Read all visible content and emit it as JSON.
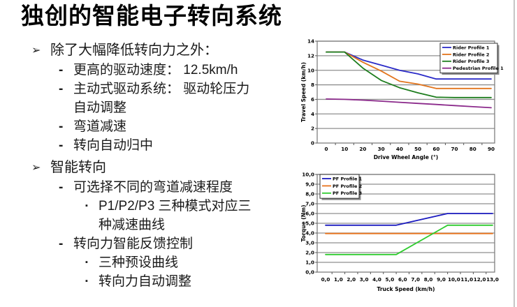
{
  "slide": {
    "title": "独创的智能电子转向系统"
  },
  "markers": {
    "l1": "➢",
    "l2": "-",
    "l3": "▪"
  },
  "outline": [
    {
      "text": "除了大幅降低转向力之外：",
      "children": [
        {
          "text": "更高的驱动速度： 12.5km/h"
        },
        {
          "lines": [
            "主动式驱动系统： 驱动轮压力",
            "自动调整"
          ]
        },
        {
          "text": "弯道减速"
        },
        {
          "text": "转向自动归中"
        }
      ]
    },
    {
      "text": "智能转向",
      "children": [
        {
          "text": "可选择不同的弯道减速程度",
          "children": [
            {
              "lines": [
                "P1/P2/P3 三种模式对应三",
                "种减速曲线"
              ]
            }
          ]
        },
        {
          "text": "转向力智能反馈控制",
          "children": [
            {
              "text": "三种预设曲线"
            },
            {
              "text": "转向力自动调整"
            }
          ]
        }
      ]
    }
  ],
  "chart_data": [
    {
      "type": "line",
      "title": "",
      "xlabel": "Drive Wheel Angle (°)",
      "ylabel": "Travel Speed (km/h)",
      "xlim": [
        0,
        90
      ],
      "ylim": [
        0,
        14
      ],
      "grid": "horizontal",
      "legend_position": "top-right",
      "x": [
        0,
        10,
        20,
        30,
        40,
        50,
        60,
        70,
        80,
        90
      ],
      "xtick_values": [
        0,
        10,
        20,
        30,
        40,
        50,
        60,
        70,
        80,
        90
      ],
      "xtick_labels": [
        "0",
        "10",
        "20",
        "30",
        "40",
        "50",
        "60",
        "70",
        "80",
        "90"
      ],
      "ytick_values": [
        0,
        2,
        4,
        6,
        8,
        10,
        12,
        14
      ],
      "ytick_labels": [
        "0",
        "2",
        "4",
        "6",
        "8",
        "10",
        "12",
        "14"
      ],
      "series": [
        {
          "name": "Rider Profile 1",
          "color": "#2b2bc8",
          "y": [
            12.5,
            12.5,
            11.4,
            10.7,
            10.0,
            9.5,
            8.8,
            8.8,
            8.8,
            8.8
          ]
        },
        {
          "name": "Rider Profile 2",
          "color": "#e2751d",
          "y": [
            12.5,
            12.5,
            11.1,
            9.9,
            8.5,
            8.1,
            7.5,
            7.5,
            7.5,
            7.5
          ]
        },
        {
          "name": "Rider Profile 3",
          "color": "#1e7d1e",
          "y": [
            12.5,
            12.5,
            10.3,
            8.6,
            7.6,
            6.9,
            6.3,
            6.25,
            6.25,
            6.25
          ]
        },
        {
          "name": "Pedestrian Profile 1",
          "color": "#8b2a8b",
          "y": [
            6.05,
            6.0,
            5.9,
            5.75,
            5.6,
            5.45,
            5.3,
            5.15,
            5.0,
            4.85
          ]
        }
      ]
    },
    {
      "type": "line",
      "title": "",
      "xlabel": "Truck Speed (km/h)",
      "ylabel": "Torque (Nm)",
      "xlim": [
        0,
        13
      ],
      "ylim": [
        0,
        10
      ],
      "grid": "horizontal",
      "legend_position": "top-left",
      "xtick_values": [
        0,
        1,
        2,
        3,
        4,
        5,
        6,
        7,
        8,
        9,
        10,
        11,
        12,
        13
      ],
      "xtick_labels": [
        "0,0",
        "1,0",
        "2,0",
        "3,0",
        "4,0",
        "5,0",
        "6,0",
        "7,0",
        "8,0",
        "9,0",
        "10,0",
        "11,0",
        "12,0",
        "13,0"
      ],
      "ytick_values": [
        0,
        1,
        2,
        3,
        4,
        5,
        6,
        7,
        8,
        9,
        10
      ],
      "ytick_labels": [
        "0,0",
        "1,0",
        "2,0",
        "3,0",
        "4,0",
        "5,0",
        "6,0",
        "7,0",
        "8,0",
        "9,0",
        "10,0"
      ],
      "series": [
        {
          "name": "PF Profile 1",
          "color": "#1c1cc0",
          "x": [
            0,
            5.5,
            9.5,
            13
          ],
          "y": [
            4.8,
            4.8,
            6.0,
            6.0
          ]
        },
        {
          "name": "PF Profile 2",
          "color": "#e8731c",
          "x": [
            0,
            13
          ],
          "y": [
            3.95,
            3.95
          ]
        },
        {
          "name": "PF Profile 3",
          "color": "#2ecc2e",
          "x": [
            0,
            5.5,
            9.5,
            13
          ],
          "y": [
            1.8,
            1.8,
            4.8,
            4.8
          ]
        }
      ]
    }
  ]
}
